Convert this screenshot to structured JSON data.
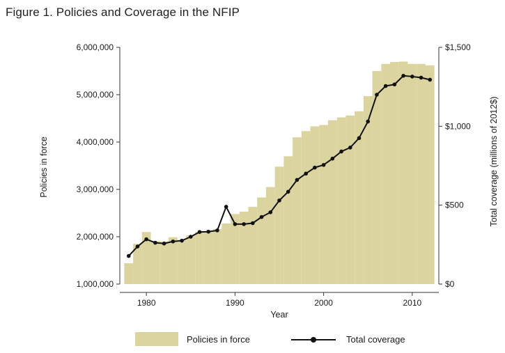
{
  "figure_title": "Figure 1. Policies and Coverage in the NFIP",
  "chart_data": {
    "type": "bar+line",
    "xlabel": "Year",
    "ylabel_left": "Policies in force",
    "ylabel_right": "Total coverage (millions of 2012$)",
    "x_ticks": [
      1980,
      1990,
      2000,
      2010
    ],
    "left_ticks": [
      {
        "value": 1000000,
        "label": "1,000,000"
      },
      {
        "value": 2000000,
        "label": "2,000,000"
      },
      {
        "value": 3000000,
        "label": "3,000,000"
      },
      {
        "value": 4000000,
        "label": "4,000,000"
      },
      {
        "value": 5000000,
        "label": "5,000,000"
      },
      {
        "value": 6000000,
        "label": "6,000,000"
      }
    ],
    "right_ticks": [
      {
        "value": 0,
        "label": "$0"
      },
      {
        "value": 500,
        "label": "$500"
      },
      {
        "value": 1000,
        "label": "$1,000"
      },
      {
        "value": 1500,
        "label": "$1,500"
      }
    ],
    "left_range": [
      1000000,
      6000000
    ],
    "right_range": [
      0,
      1500
    ],
    "x_range": [
      1977,
      2013
    ],
    "grid": false,
    "legend_position": "bottom",
    "series": [
      {
        "name": "Policies in force",
        "kind": "bar",
        "axis": "left",
        "color": "#dcd49f",
        "x": [
          1978,
          1979,
          1980,
          1981,
          1982,
          1983,
          1984,
          1985,
          1986,
          1987,
          1988,
          1989,
          1990,
          1991,
          1992,
          1993,
          1994,
          1995,
          1996,
          1997,
          1998,
          1999,
          2000,
          2001,
          2002,
          2003,
          2004,
          2005,
          2006,
          2007,
          2008,
          2009,
          2010,
          2011,
          2012
        ],
        "values": [
          1440000,
          1850000,
          2100000,
          1910000,
          1900000,
          1990000,
          1930000,
          2030000,
          2100000,
          2100000,
          2160000,
          2280000,
          2480000,
          2530000,
          2630000,
          2830000,
          3050000,
          3480000,
          3700000,
          4100000,
          4230000,
          4330000,
          4360000,
          4460000,
          4520000,
          4560000,
          4650000,
          4970000,
          5500000,
          5650000,
          5690000,
          5700000,
          5650000,
          5650000,
          5620000
        ]
      },
      {
        "name": "Total coverage",
        "kind": "line",
        "axis": "right",
        "color": "#111111",
        "x": [
          1978,
          1979,
          1980,
          1981,
          1982,
          1983,
          1984,
          1985,
          1986,
          1987,
          1988,
          1989,
          1990,
          1991,
          1992,
          1993,
          1994,
          1995,
          1996,
          1997,
          1998,
          1999,
          2000,
          2001,
          2002,
          2003,
          2004,
          2005,
          2006,
          2007,
          2008,
          2009,
          2010,
          2011,
          2012
        ],
        "values": [
          178,
          238,
          284,
          262,
          257,
          270,
          275,
          300,
          330,
          332,
          340,
          490,
          380,
          380,
          386,
          425,
          455,
          530,
          585,
          660,
          700,
          738,
          755,
          795,
          840,
          865,
          925,
          1030,
          1200,
          1255,
          1265,
          1320,
          1315,
          1308,
          1295
        ]
      }
    ]
  }
}
